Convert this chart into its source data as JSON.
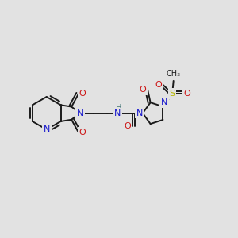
{
  "bg_color": "#e2e2e2",
  "bond_color": "#1a1a1a",
  "bond_width": 1.4,
  "atom_colors": {
    "C": "#1a1a1a",
    "N": "#1414cc",
    "O": "#cc1414",
    "S": "#b8b800",
    "H": "#4a7a7a"
  },
  "figsize": [
    3.0,
    3.0
  ],
  "dpi": 100
}
